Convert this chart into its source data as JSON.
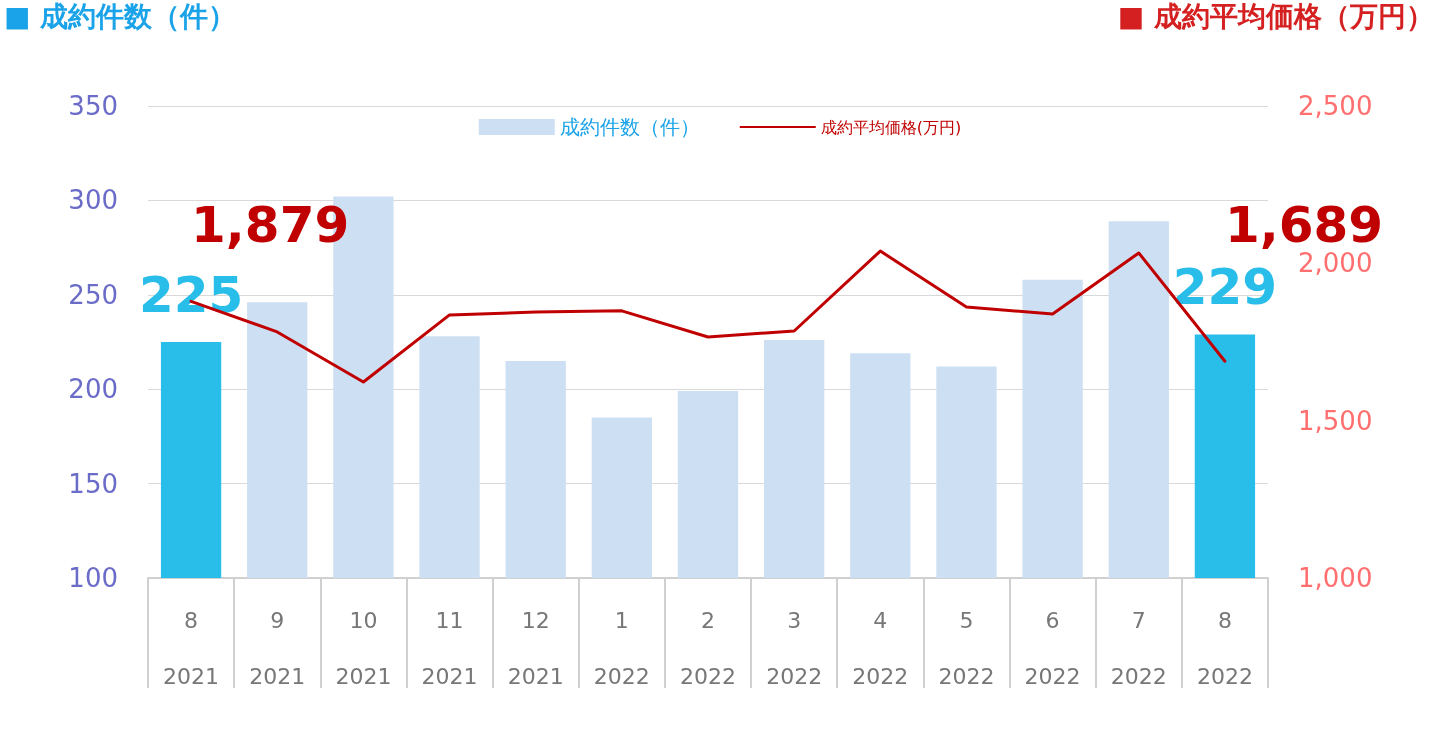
{
  "chart_data": {
    "type": "bar",
    "ylabel": "■ 成約件数（件）",
    "y2label": "■ 成約平均価格（万円）",
    "categories": [
      "8\n2021",
      "9\n2021",
      "10\n2021",
      "11\n2021",
      "12\n2021",
      "1\n2022",
      "2\n2022",
      "3\n2022",
      "4\n2022",
      "5\n2022",
      "6\n2022",
      "7\n2022",
      "8\n2022"
    ],
    "series": [
      {
        "name": "成約件数（件）",
        "color": "#cddff3",
        "colors": [
          "#29bde9",
          "#cddff3",
          "#cddff3",
          "#cddff3",
          "#cddff3",
          "#cddff3",
          "#cddff3",
          "#cddff3",
          "#cddff3",
          "#cddff3",
          "#cddff3",
          "#cddff3",
          "#29bde9"
        ],
        "values": [
          225,
          246,
          302,
          228,
          215,
          185,
          199,
          226,
          219,
          212,
          258,
          289,
          229
        ],
        "value_labels": [
          "225",
          null,
          null,
          null,
          null,
          null,
          null,
          null,
          null,
          null,
          null,
          null,
          "229"
        ]
      },
      {
        "name": "成約平均価格(万円)",
        "type": "line",
        "axis": "y2",
        "color": "#c00000",
        "values": [
          1879,
          1782,
          1623,
          1836,
          1845,
          1849,
          1766,
          1785,
          2039,
          1861,
          1839,
          2033,
          1689
        ],
        "value_labels": [
          "1,879",
          null,
          null,
          null,
          null,
          null,
          null,
          null,
          null,
          null,
          null,
          null,
          "1,689"
        ]
      }
    ],
    "ylim": [
      100,
      350
    ],
    "yticks": [
      100,
      150,
      200,
      250,
      300,
      350
    ],
    "y2lim": [
      1000,
      2500
    ],
    "y2ticks": [
      {
        "value": 1000,
        "label": "1,000"
      },
      {
        "value": 1500,
        "label": "1,500"
      },
      {
        "value": 2000,
        "label": "2,000"
      },
      {
        "value": 2500,
        "label": "2,500"
      }
    ],
    "grid": "y",
    "legend": "top",
    "marker": "none",
    "line_style": "solid"
  }
}
